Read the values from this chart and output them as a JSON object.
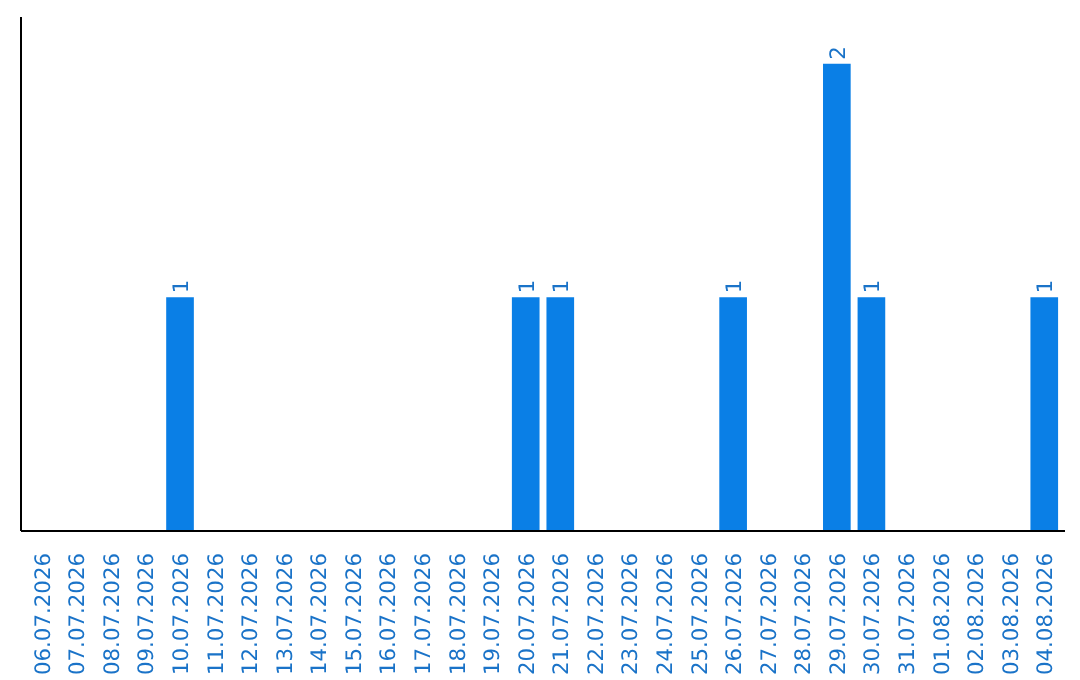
{
  "chart_data": {
    "type": "bar",
    "categories": [
      "06.07.2026",
      "07.07.2026",
      "08.07.2026",
      "09.07.2026",
      "10.07.2026",
      "11.07.2026",
      "12.07.2026",
      "13.07.2026",
      "14.07.2026",
      "15.07.2026",
      "16.07.2026",
      "17.07.2026",
      "18.07.2026",
      "19.07.2026",
      "20.07.2026",
      "21.07.2026",
      "22.07.2026",
      "23.07.2026",
      "24.07.2026",
      "25.07.2026",
      "26.07.2026",
      "27.07.2026",
      "28.07.2026",
      "29.07.2026",
      "30.07.2026",
      "31.07.2026",
      "01.08.2026",
      "02.08.2026",
      "03.08.2026",
      "04.08.2026"
    ],
    "values": [
      0,
      0,
      0,
      0,
      1,
      0,
      0,
      0,
      0,
      0,
      0,
      0,
      0,
      0,
      1,
      1,
      0,
      0,
      0,
      0,
      1,
      0,
      0,
      2,
      1,
      0,
      0,
      0,
      0,
      1
    ],
    "value_labels": [
      null,
      null,
      null,
      null,
      "1",
      null,
      null,
      null,
      null,
      null,
      null,
      null,
      null,
      null,
      "1",
      "1",
      null,
      null,
      null,
      null,
      "1",
      null,
      null,
      "2",
      "1",
      null,
      null,
      null,
      null,
      "1"
    ],
    "color": "#0a7fe6",
    "grid": false,
    "tick_labels": "x"
  }
}
